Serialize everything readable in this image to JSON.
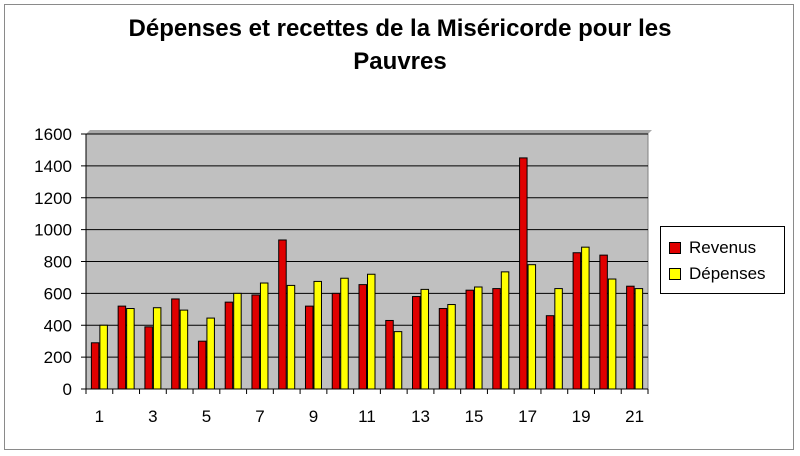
{
  "chart_data": {
    "type": "bar",
    "title": "Dépenses et recettes de la Miséricorde pour les Pauvres",
    "title_lines": [
      "Dépenses et recettes de la Miséricorde pour les",
      "Pauvres"
    ],
    "categories": [
      1,
      2,
      3,
      4,
      5,
      6,
      7,
      8,
      9,
      10,
      11,
      12,
      13,
      14,
      15,
      16,
      17,
      18,
      19,
      20,
      21
    ],
    "x_tick_labels": [
      "1",
      "3",
      "5",
      "7",
      "9",
      "11",
      "13",
      "15",
      "17",
      "19",
      "21"
    ],
    "y_tick_labels": [
      "0",
      "200",
      "400",
      "600",
      "800",
      "1000",
      "1200",
      "1400",
      "1600"
    ],
    "ylim": [
      0,
      1600
    ],
    "ytick_step": 200,
    "grid": true,
    "plot_background": "#c0c0c0",
    "legend_position": "right",
    "series": [
      {
        "name": "Revenus",
        "color": "#e00000",
        "values": [
          290,
          520,
          390,
          565,
          300,
          545,
          590,
          935,
          520,
          600,
          655,
          430,
          580,
          505,
          620,
          630,
          1450,
          460,
          855,
          840,
          645
        ]
      },
      {
        "name": "Dépenses",
        "color": "#ffff00",
        "values": [
          400,
          505,
          510,
          495,
          445,
          600,
          665,
          650,
          675,
          695,
          720,
          360,
          625,
          530,
          640,
          735,
          780,
          630,
          890,
          690,
          630
        ]
      }
    ]
  }
}
